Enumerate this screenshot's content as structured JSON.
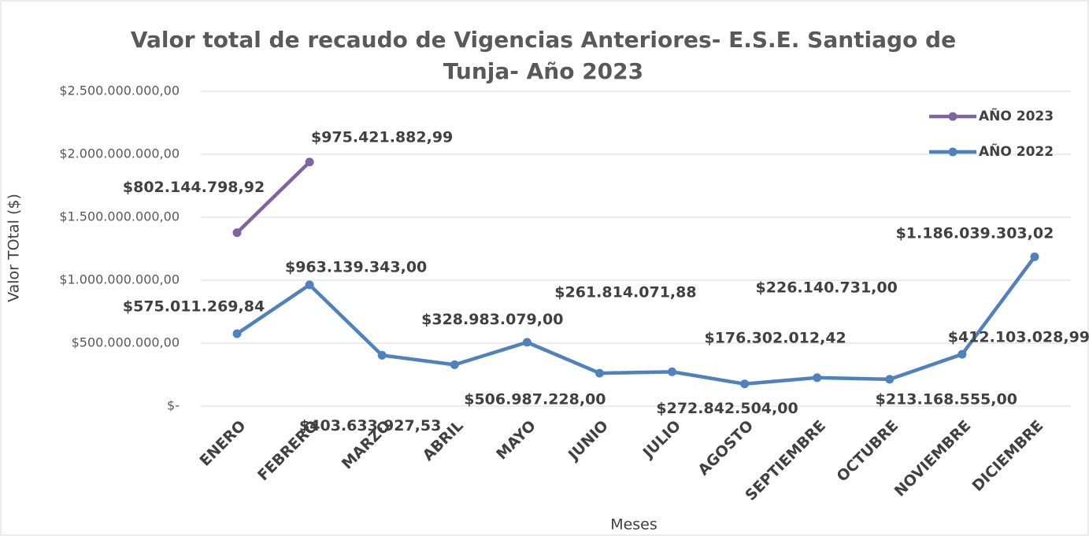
{
  "chart_data": {
    "type": "line",
    "stacked": true,
    "title": [
      "Valor total de recaudo de Vigencias Anteriores- E.S.E. Santiago de",
      "Tunja- Año 2023"
    ],
    "xlabel": "Meses",
    "ylabel": "Valor TOtal ($)",
    "categories": [
      "ENERO",
      "FEBRERO",
      "MARZO",
      "ABRIL",
      "MAYO",
      "JUNIO",
      "JULIO",
      "AGOSTO",
      "SEPTIEMBRE",
      "OCTUBRE",
      "NOVIEMBRE",
      "DICIEMBRE"
    ],
    "series": [
      {
        "name": "AÑO 2022",
        "color": "#4f81bd",
        "values": [
          575011269.84,
          963139343.0,
          403633927.53,
          328983079.0,
          506987228.0,
          261814071.88,
          272842504.0,
          176302012.42,
          226140731.0,
          213168555.0,
          412103028.99,
          1186039303.02
        ],
        "value_labels": [
          "$575.011.269,84",
          "$963.139.343,00",
          "$403.633.927,53",
          "$328.983.079,00",
          "$506.987.228,00",
          "$261.814.071,88",
          "$272.842.504,00",
          "$176.302.012,42",
          "$226.140.731,00",
          "$213.168.555,00",
          "$412.103.028,99",
          "$1.186.039.303,02"
        ]
      },
      {
        "name": "AÑO 2023",
        "color": "#8064a2",
        "values": [
          802144798.92,
          975421882.99,
          null,
          null,
          null,
          null,
          null,
          null,
          null,
          null,
          null,
          null
        ],
        "value_labels": [
          "$802.144.798,92",
          "$975.421.882,99",
          null,
          null,
          null,
          null,
          null,
          null,
          null,
          null,
          null,
          null
        ]
      }
    ],
    "ylim": [
      0,
      2500000000
    ],
    "yticks": [
      {
        "value": 0,
        "label": "$-"
      },
      {
        "value": 500000000,
        "label": "$500.000.000,00"
      },
      {
        "value": 1000000000,
        "label": "$1.000.000.000,00"
      },
      {
        "value": 1500000000,
        "label": "$1.500.000.000,00"
      },
      {
        "value": 2000000000,
        "label": "$2.000.000.000,00"
      },
      {
        "value": 2500000000,
        "label": "$2.500.000.000,00"
      }
    ],
    "grid": true,
    "legend": "top-right"
  }
}
